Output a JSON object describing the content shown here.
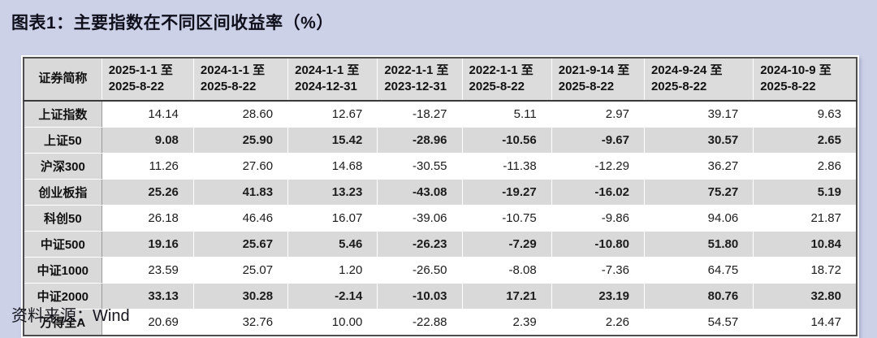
{
  "title": "图表1：主要指数在不同区间收益率（%）",
  "source": "资料来源：Wind",
  "colors": {
    "page_bg": "#ccd1e8",
    "table_alt_row_bg": "#d9d9d9",
    "header_bg": "#dcdcdc",
    "border_dark": "#4d4d4d"
  },
  "table": {
    "corner_header": "证券简称",
    "columns": [
      "2025-1-1 至\n2025-8-22",
      "2024-1-1 至\n2025-8-22",
      "2024-1-1 至\n2024-12-31",
      "2022-1-1 至\n2023-12-31",
      "2022-1-1 至\n2025-8-22",
      "2021-9-14 至\n2025-8-22",
      "2024-9-24 至\n2025-8-22",
      "2024-10-9 至\n2025-8-22"
    ],
    "rows": [
      {
        "name": "上证指数",
        "values": [
          "14.14",
          "28.60",
          "12.67",
          "-18.27",
          "5.11",
          "2.97",
          "39.17",
          "9.63"
        ]
      },
      {
        "name": "上证50",
        "values": [
          "9.08",
          "25.90",
          "15.42",
          "-28.96",
          "-10.56",
          "-9.67",
          "30.57",
          "2.65"
        ]
      },
      {
        "name": "沪深300",
        "values": [
          "11.26",
          "27.60",
          "14.68",
          "-30.55",
          "-11.38",
          "-12.29",
          "36.27",
          "2.86"
        ]
      },
      {
        "name": "创业板指",
        "values": [
          "25.26",
          "41.83",
          "13.23",
          "-43.08",
          "-19.27",
          "-16.02",
          "75.27",
          "5.19"
        ]
      },
      {
        "name": "科创50",
        "values": [
          "26.18",
          "46.46",
          "16.07",
          "-39.06",
          "-10.75",
          "-9.86",
          "94.06",
          "21.87"
        ]
      },
      {
        "name": "中证500",
        "values": [
          "19.16",
          "25.67",
          "5.46",
          "-26.23",
          "-7.29",
          "-10.80",
          "51.80",
          "10.84"
        ]
      },
      {
        "name": "中证1000",
        "values": [
          "23.59",
          "25.07",
          "1.20",
          "-26.50",
          "-8.08",
          "-7.36",
          "64.75",
          "18.72"
        ]
      },
      {
        "name": "中证2000",
        "values": [
          "33.13",
          "30.28",
          "-2.14",
          "-10.03",
          "17.21",
          "23.19",
          "80.76",
          "32.80"
        ]
      },
      {
        "name": "万得全A",
        "values": [
          "20.69",
          "32.76",
          "10.00",
          "-22.88",
          "2.39",
          "2.26",
          "54.57",
          "14.47"
        ]
      }
    ]
  }
}
